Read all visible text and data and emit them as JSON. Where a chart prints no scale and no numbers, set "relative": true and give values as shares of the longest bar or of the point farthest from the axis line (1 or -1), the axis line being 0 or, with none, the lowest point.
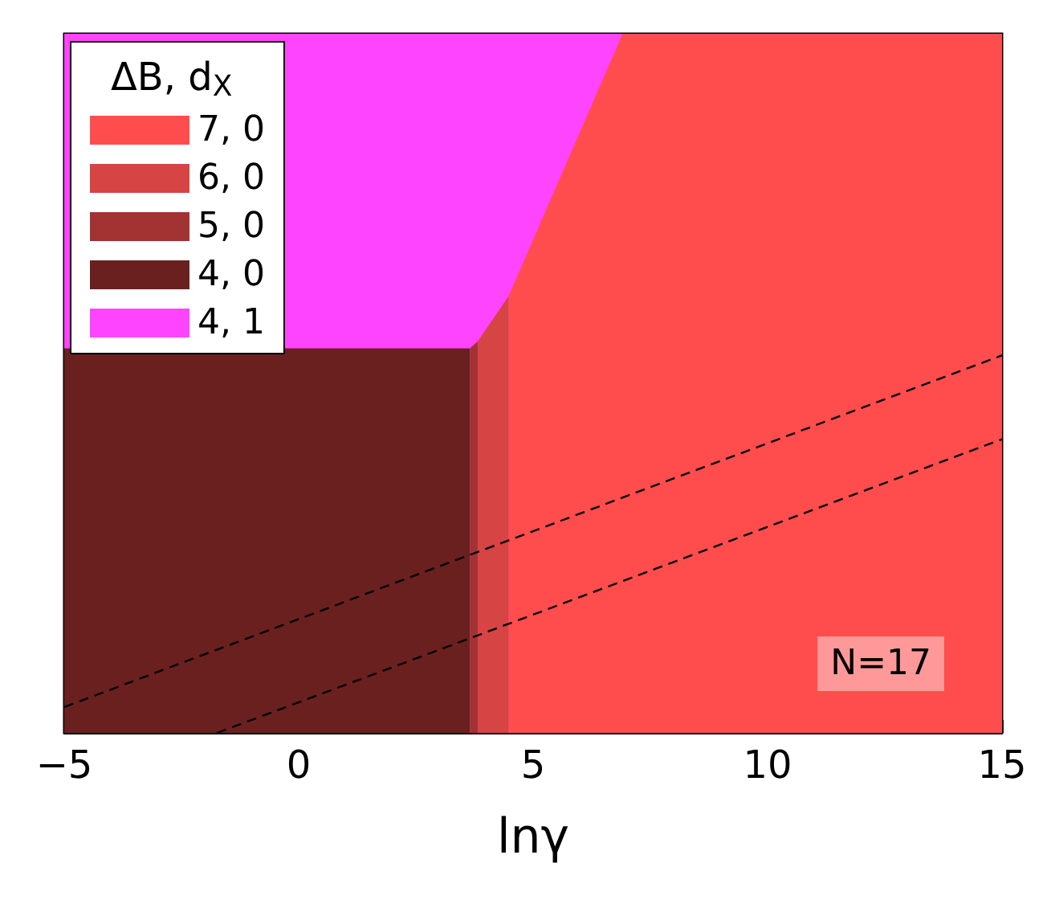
{
  "chart_data": {
    "type": "area",
    "relative": true,
    "xlabel": "lnγ",
    "legend_title": "ΔB, d$_{X}$",
    "legend": "top left",
    "tick_labels": "x",
    "xlim": [
      -5,
      15
    ],
    "xticks": [
      -5,
      0,
      5,
      10,
      15
    ],
    "series": [
      {
        "name": "7, 0",
        "color": "#ff4d4d",
        "x": [
          4.48,
          6.91,
          15
        ],
        "values": [
          0.625,
          1,
          1
        ]
      },
      {
        "name": "6, 0",
        "color": "#d64444",
        "x": [
          3.82,
          4.48
        ],
        "values": [
          0.56,
          0.625
        ]
      },
      {
        "name": "5, 0",
        "color": "#a33333",
        "x": [
          3.65,
          3.82
        ],
        "values": [
          0.55,
          0.56
        ]
      },
      {
        "name": "4, 0",
        "color": "#6b2020",
        "x": [
          -5,
          3.65
        ],
        "values": [
          0.55,
          0.55
        ]
      },
      {
        "name": "4, 1",
        "color": "#ff44ff",
        "x": [
          -5,
          6.91
        ],
        "values": [
          1,
          1
        ]
      },
      {
        "type": "line",
        "color": "#000000",
        "line_style": "dashed",
        "x": [
          -5,
          15
        ],
        "values": [
          0.037,
          0.54
        ]
      },
      {
        "type": "line",
        "color": "#000000",
        "line_style": "dashed",
        "x": [
          -1.74,
          15
        ],
        "values": [
          0,
          0.42
        ]
      }
    ],
    "annotations": [
      "N=17"
    ]
  }
}
